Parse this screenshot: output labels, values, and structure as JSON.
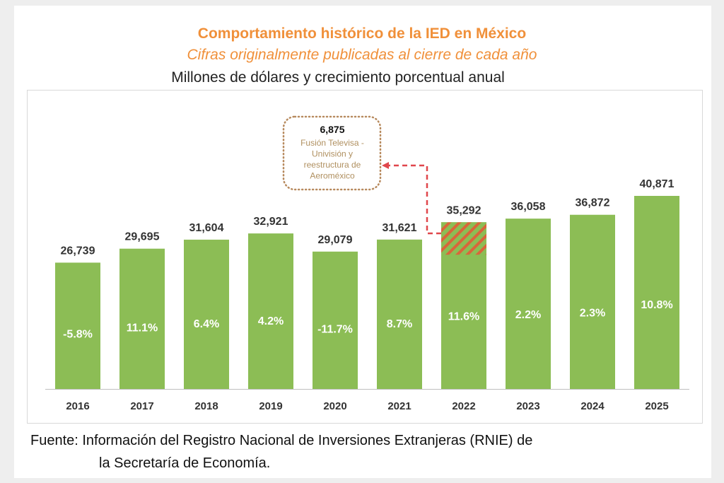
{
  "title": "Comportamiento histórico de la IED en México",
  "subtitle": "Cifras originalmente publicadas al cierre de cada año",
  "units": "Millones de dólares y crecimiento porcentual anual",
  "source_line1": "Fuente: Información del Registro Nacional de Inversiones Extranjeras (RNIE) de",
  "source_line2": "la Secretaría de Economía.",
  "colors": {
    "bar": "#8cbd55",
    "hatch": "#d9663a",
    "annotation_border": "#b78a5e",
    "annotation_text": "#b09060",
    "arrow": "#e0474c",
    "title": "#f0903a"
  },
  "chart_data": {
    "type": "bar",
    "title": "Comportamiento histórico de la IED en México",
    "categories": [
      "2016",
      "2017",
      "2018",
      "2019",
      "2020",
      "2021",
      "2022",
      "2023",
      "2024",
      "2025"
    ],
    "values": [
      26739,
      29695,
      31604,
      32921,
      29079,
      31621,
      35292,
      36058,
      36872,
      40871
    ],
    "value_labels": [
      "26,739",
      "29,695",
      "31,604",
      "32,921",
      "29,079",
      "31,621",
      "35,292",
      "36,058",
      "36,872",
      "40,871"
    ],
    "growth_labels": [
      "-5.8%",
      "11.1%",
      "6.4%",
      "4.2%",
      "-11.7%",
      "8.7%",
      "11.6%",
      "2.2%",
      "2.3%",
      "10.8%"
    ],
    "highlight": {
      "category": "2022",
      "value": 6875,
      "label": "6,875",
      "text": [
        "Fusión Televisa -",
        "Univisión y",
        "reestructura de",
        "Aeroméxico"
      ],
      "pattern": "hatched"
    },
    "grid": false,
    "legend": "none"
  }
}
